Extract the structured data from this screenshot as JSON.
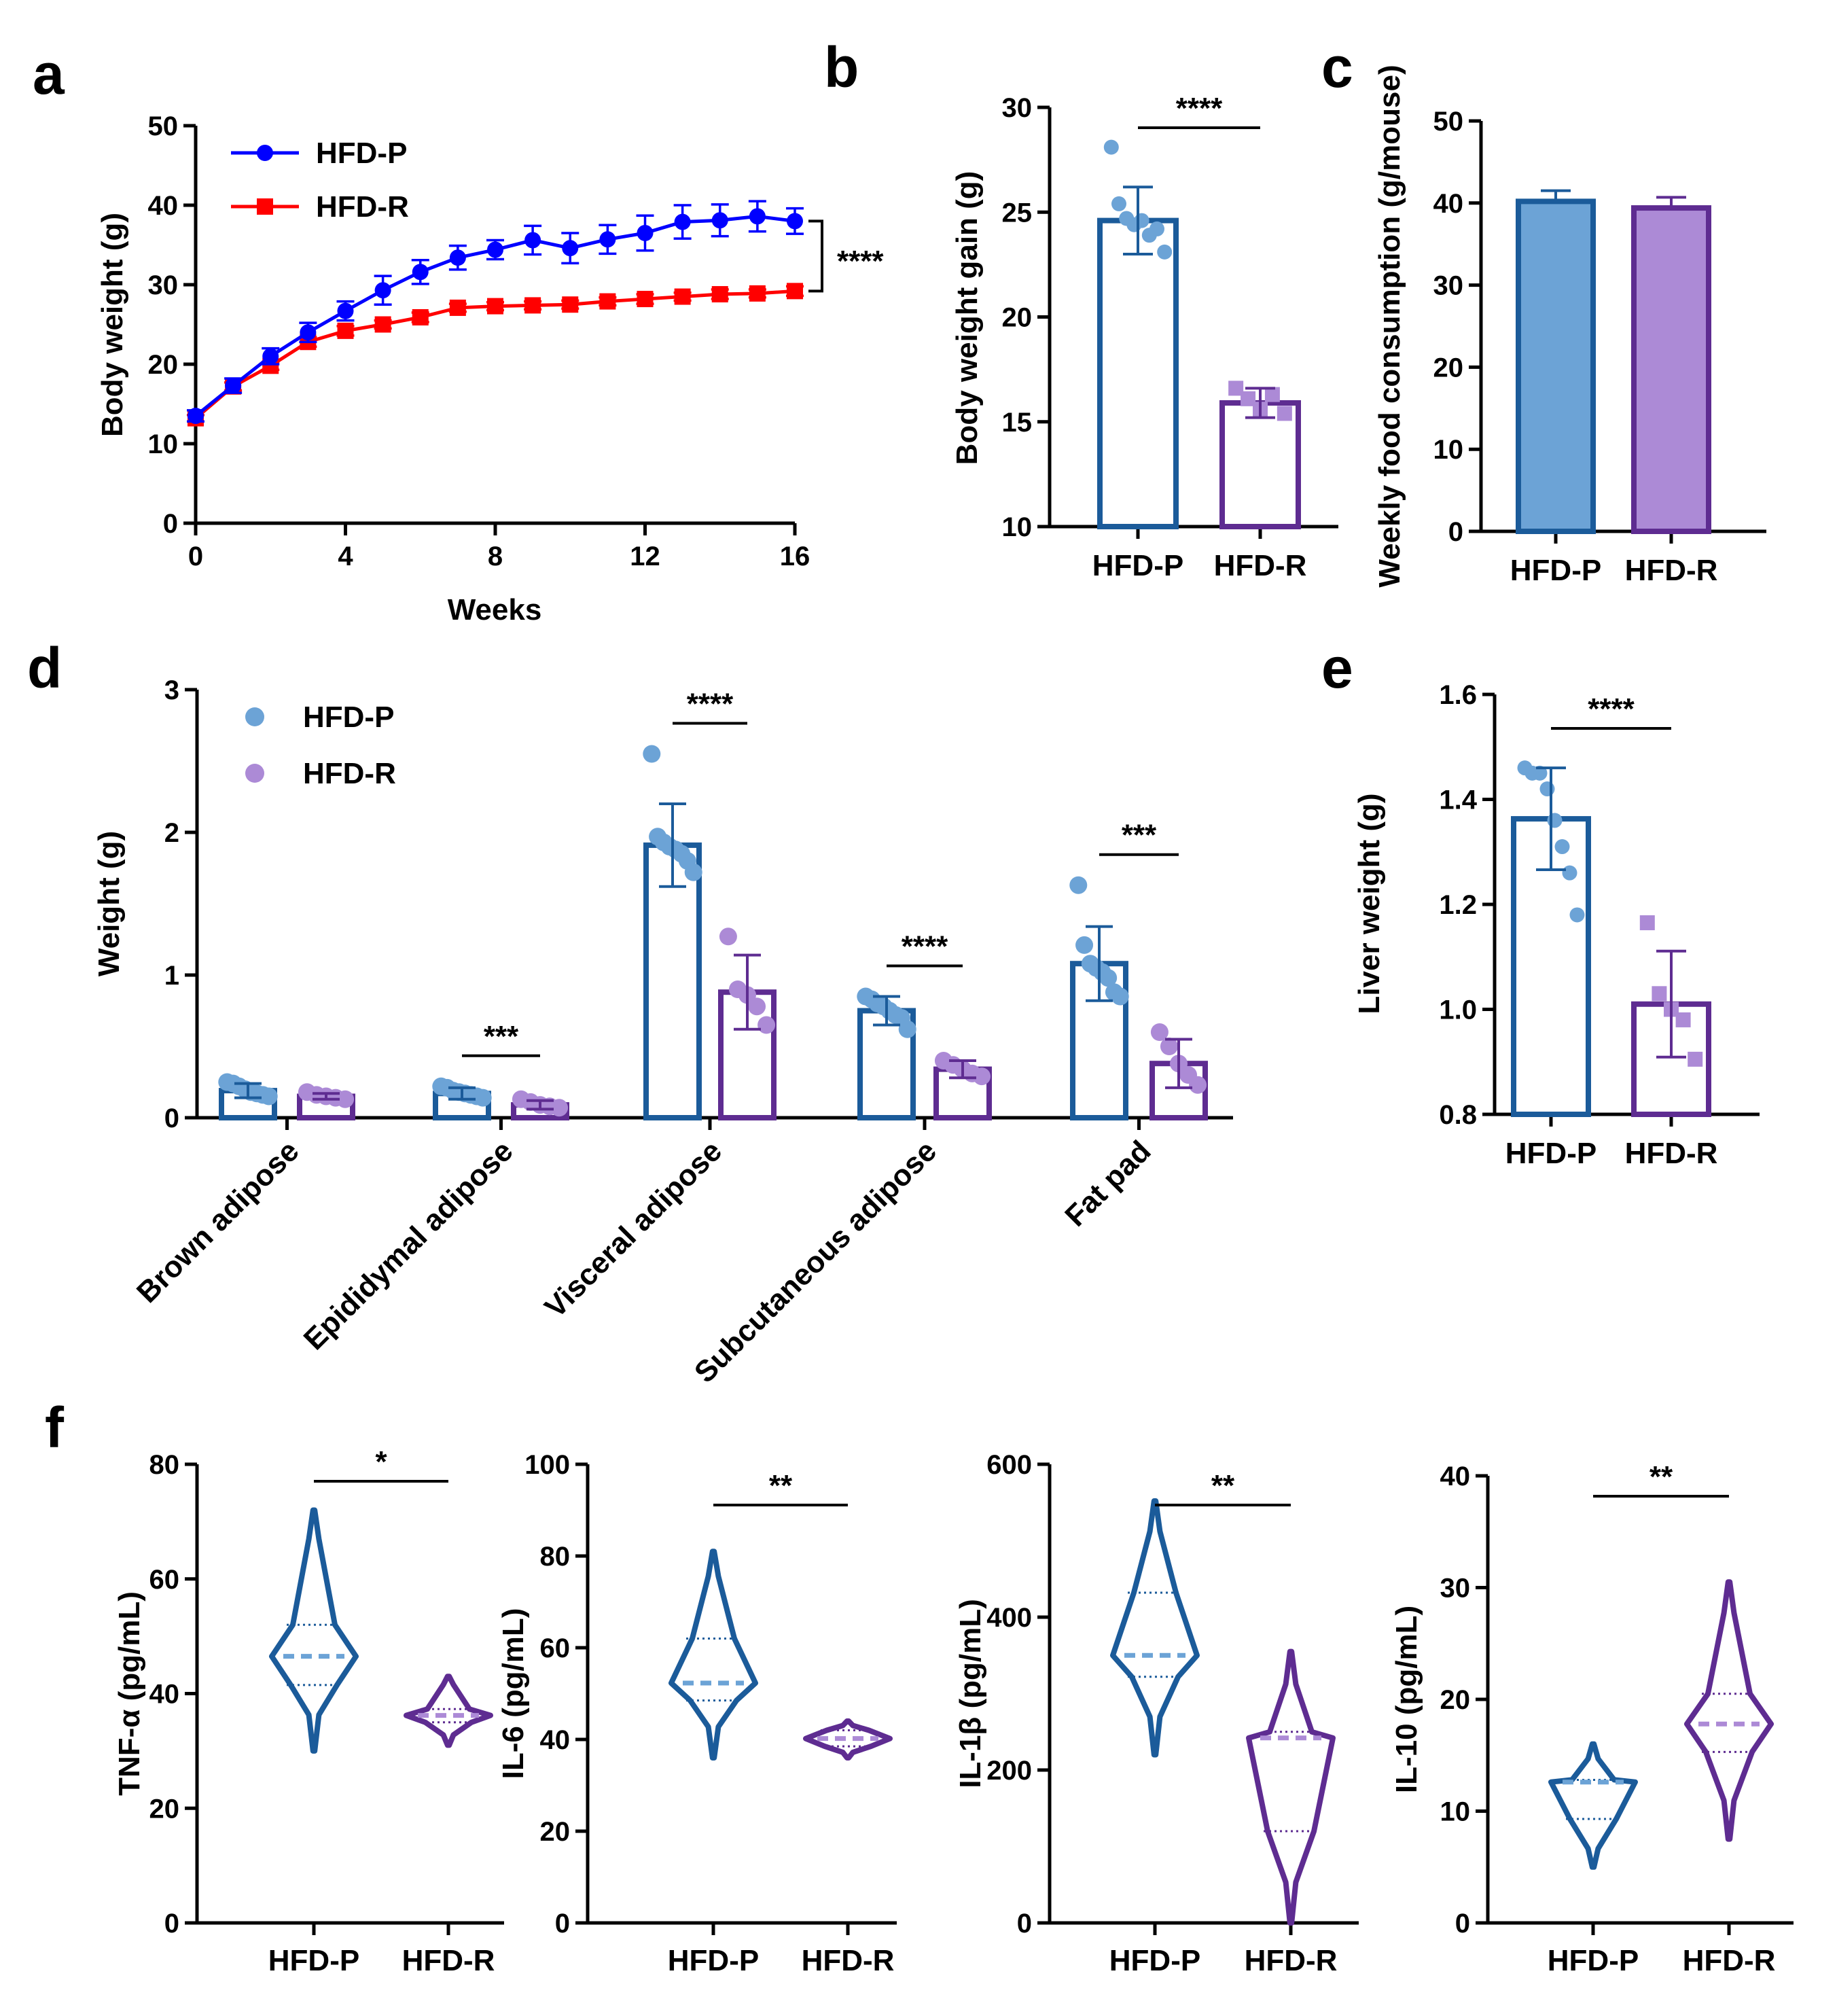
{
  "colors": {
    "hfd_p_line": "#0000FF",
    "hfd_r_line": "#FF0000",
    "dark_blue": "#1B5B9A",
    "light_blue": "#6CA3D6",
    "dark_purple": "#5E2C91",
    "light_purple": "#AC8AD6"
  },
  "chart_data": [
    {
      "panel": "a",
      "type": "line",
      "xlabel": "Weeks",
      "ylabel": "Body weight (g)",
      "xlim": [
        0,
        16
      ],
      "ylim": [
        0,
        50
      ],
      "xticks": [
        "0",
        "4",
        "8",
        "12",
        "16"
      ],
      "yticks": [
        "0",
        "10",
        "20",
        "30",
        "40",
        "50"
      ],
      "x": [
        0,
        1,
        2,
        3,
        4,
        5,
        6,
        7,
        8,
        9,
        10,
        11,
        12,
        13,
        14,
        15,
        16
      ],
      "series": [
        {
          "name": "HFD-P",
          "values": [
            13.5,
            17.3,
            21.0,
            24.0,
            26.7,
            29.3,
            31.6,
            33.4,
            34.4,
            35.6,
            34.6,
            35.7,
            36.5,
            37.9,
            38.1,
            38.6,
            38.0
          ],
          "err": [
            0.7,
            0.9,
            1.0,
            1.2,
            1.2,
            1.8,
            1.5,
            1.5,
            1.2,
            1.8,
            1.9,
            1.8,
            2.2,
            2.1,
            2.0,
            1.9,
            1.6
          ]
        },
        {
          "name": "HFD-R",
          "values": [
            13.2,
            17.2,
            19.8,
            22.8,
            24.2,
            25.0,
            25.9,
            27.1,
            27.3,
            27.4,
            27.5,
            27.9,
            28.2,
            28.5,
            28.8,
            28.9,
            29.2
          ],
          "err": [
            0.4,
            0.5,
            0.5,
            0.6,
            0.6,
            0.5,
            0.6,
            0.5,
            0.5,
            0.5,
            0.5,
            0.5,
            0.6,
            0.5,
            0.6,
            0.5,
            0.6
          ]
        }
      ],
      "legend": [
        "HFD-P",
        "HFD-R"
      ],
      "significance": "****"
    },
    {
      "panel": "b",
      "type": "bar",
      "ylabel": "Body weight gain (g)",
      "ylim": [
        10,
        30
      ],
      "yticks": [
        "10",
        "15",
        "20",
        "25",
        "30"
      ],
      "categories": [
        "HFD-P",
        "HFD-R"
      ],
      "values": [
        24.6,
        15.9
      ],
      "err": [
        1.6,
        0.7
      ],
      "points": [
        [
          28.1,
          25.4,
          24.7,
          24.4,
          24.6,
          23.9,
          24.2,
          23.1
        ],
        [
          16.6,
          16.1,
          15.6,
          16.3,
          15.4
        ]
      ],
      "significance": "****"
    },
    {
      "panel": "c",
      "type": "bar",
      "ylabel": "Weekly food consumption (g/mouse)",
      "ylim": [
        0,
        50
      ],
      "yticks": [
        "0",
        "10",
        "20",
        "30",
        "40",
        "50"
      ],
      "categories": [
        "HFD-P",
        "HFD-R"
      ],
      "values": [
        40.2,
        39.4
      ],
      "err": [
        1.3,
        1.3
      ]
    },
    {
      "panel": "d",
      "type": "bar",
      "ylabel": "Weight (g)",
      "ylim": [
        0,
        3
      ],
      "yticks": [
        "0",
        "1",
        "2",
        "3"
      ],
      "categories": [
        "Brown adipose",
        "Epididymal adipose",
        "Visceral adipose",
        "Subcutaneous adipose",
        "Fat pad"
      ],
      "legend": [
        "HFD-P",
        "HFD-R"
      ],
      "series": [
        {
          "name": "HFD-P",
          "values": [
            0.19,
            0.17,
            1.91,
            0.75,
            1.08
          ],
          "err": [
            0.05,
            0.04,
            0.29,
            0.1,
            0.26
          ],
          "points": [
            [
              0.25,
              0.24,
              0.22,
              0.2,
              0.18,
              0.17,
              0.16,
              0.15
            ],
            [
              0.22,
              0.21,
              0.19,
              0.18,
              0.17,
              0.16,
              0.15,
              0.14
            ],
            [
              2.55,
              1.97,
              1.93,
              1.9,
              1.88,
              1.85,
              1.8,
              1.72
            ],
            [
              0.85,
              0.83,
              0.8,
              0.78,
              0.75,
              0.72,
              0.7,
              0.62
            ],
            [
              1.63,
              1.21,
              1.08,
              1.05,
              1.02,
              0.98,
              0.88,
              0.85
            ]
          ]
        },
        {
          "name": "HFD-R",
          "values": [
            0.15,
            0.09,
            0.88,
            0.34,
            0.38
          ],
          "err": [
            0.02,
            0.03,
            0.26,
            0.06,
            0.17
          ],
          "points": [
            [
              0.18,
              0.16,
              0.15,
              0.14,
              0.13
            ],
            [
              0.13,
              0.11,
              0.09,
              0.08,
              0.07
            ],
            [
              1.27,
              0.9,
              0.86,
              0.78,
              0.65
            ],
            [
              0.4,
              0.37,
              0.34,
              0.31,
              0.29
            ],
            [
              0.6,
              0.5,
              0.38,
              0.3,
              0.23
            ]
          ]
        }
      ],
      "significance": [
        "",
        "***",
        "****",
        "****",
        "***"
      ]
    },
    {
      "panel": "e",
      "type": "bar",
      "ylabel": "Liver weight (g)",
      "ylim": [
        0.8,
        1.6
      ],
      "yticks": [
        "0.8",
        "1.0",
        "1.2",
        "1.4",
        "1.6"
      ],
      "categories": [
        "HFD-P",
        "HFD-R"
      ],
      "values": [
        1.363,
        1.01
      ],
      "err": [
        0.097,
        0.101
      ],
      "points": [
        [
          1.46,
          1.45,
          1.45,
          1.42,
          1.36,
          1.31,
          1.26,
          1.18
        ],
        [
          1.165,
          1.03,
          1.0,
          0.98,
          0.905
        ]
      ],
      "significance": "****"
    },
    {
      "panel": "f",
      "type": "violin",
      "plots": [
        {
          "ylabel": "TNF-α (pg/mL)",
          "ylim": [
            0,
            80
          ],
          "yticks": [
            "0",
            "20",
            "40",
            "60",
            "80"
          ],
          "categories": [
            "HFD-P",
            "HFD-R"
          ],
          "medians": [
            46.5,
            36.2
          ],
          "quartiles": [
            [
              41.5,
              52.0
            ],
            [
              35.0,
              37.3
            ]
          ],
          "range": [
            [
              30,
              72
            ],
            [
              31,
              43
            ]
          ],
          "significance": "*"
        },
        {
          "ylabel": "IL-6 (pg/mL)",
          "ylim": [
            0,
            100
          ],
          "yticks": [
            "0",
            "20",
            "40",
            "60",
            "80",
            "100"
          ],
          "categories": [
            "HFD-P",
            "HFD-R"
          ],
          "medians": [
            52.3,
            40.2
          ],
          "quartiles": [
            [
              48.5,
              62.0
            ],
            [
              38.5,
              42.0
            ]
          ],
          "range": [
            [
              36,
              81
            ],
            [
              36,
              44
            ]
          ],
          "significance": "**"
        },
        {
          "ylabel": "IL-1β (pg/mL)",
          "ylim": [
            0,
            600
          ],
          "yticks": [
            "0",
            "200",
            "400",
            "600"
          ],
          "categories": [
            "HFD-P",
            "HFD-R"
          ],
          "medians": [
            350,
            242
          ],
          "quartiles": [
            [
              322,
              432
            ],
            [
              120,
              250
            ]
          ],
          "range": [
            [
              220,
              552
            ],
            [
              0,
              355
            ]
          ],
          "significance": "**"
        },
        {
          "ylabel": "IL-10 (pg/mL)",
          "ylim": [
            0,
            40
          ],
          "yticks": [
            "0",
            "10",
            "20",
            "30",
            "40"
          ],
          "categories": [
            "HFD-P",
            "HFD-R"
          ],
          "medians": [
            12.6,
            17.8
          ],
          "quartiles": [
            [
              9.3,
              12.8
            ],
            [
              15.3,
              20.5
            ]
          ],
          "range": [
            [
              5,
              16
            ],
            [
              7.5,
              30.5
            ]
          ],
          "significance": "**"
        }
      ]
    }
  ],
  "panel_labels": [
    "a",
    "b",
    "c",
    "d",
    "e",
    "f"
  ]
}
